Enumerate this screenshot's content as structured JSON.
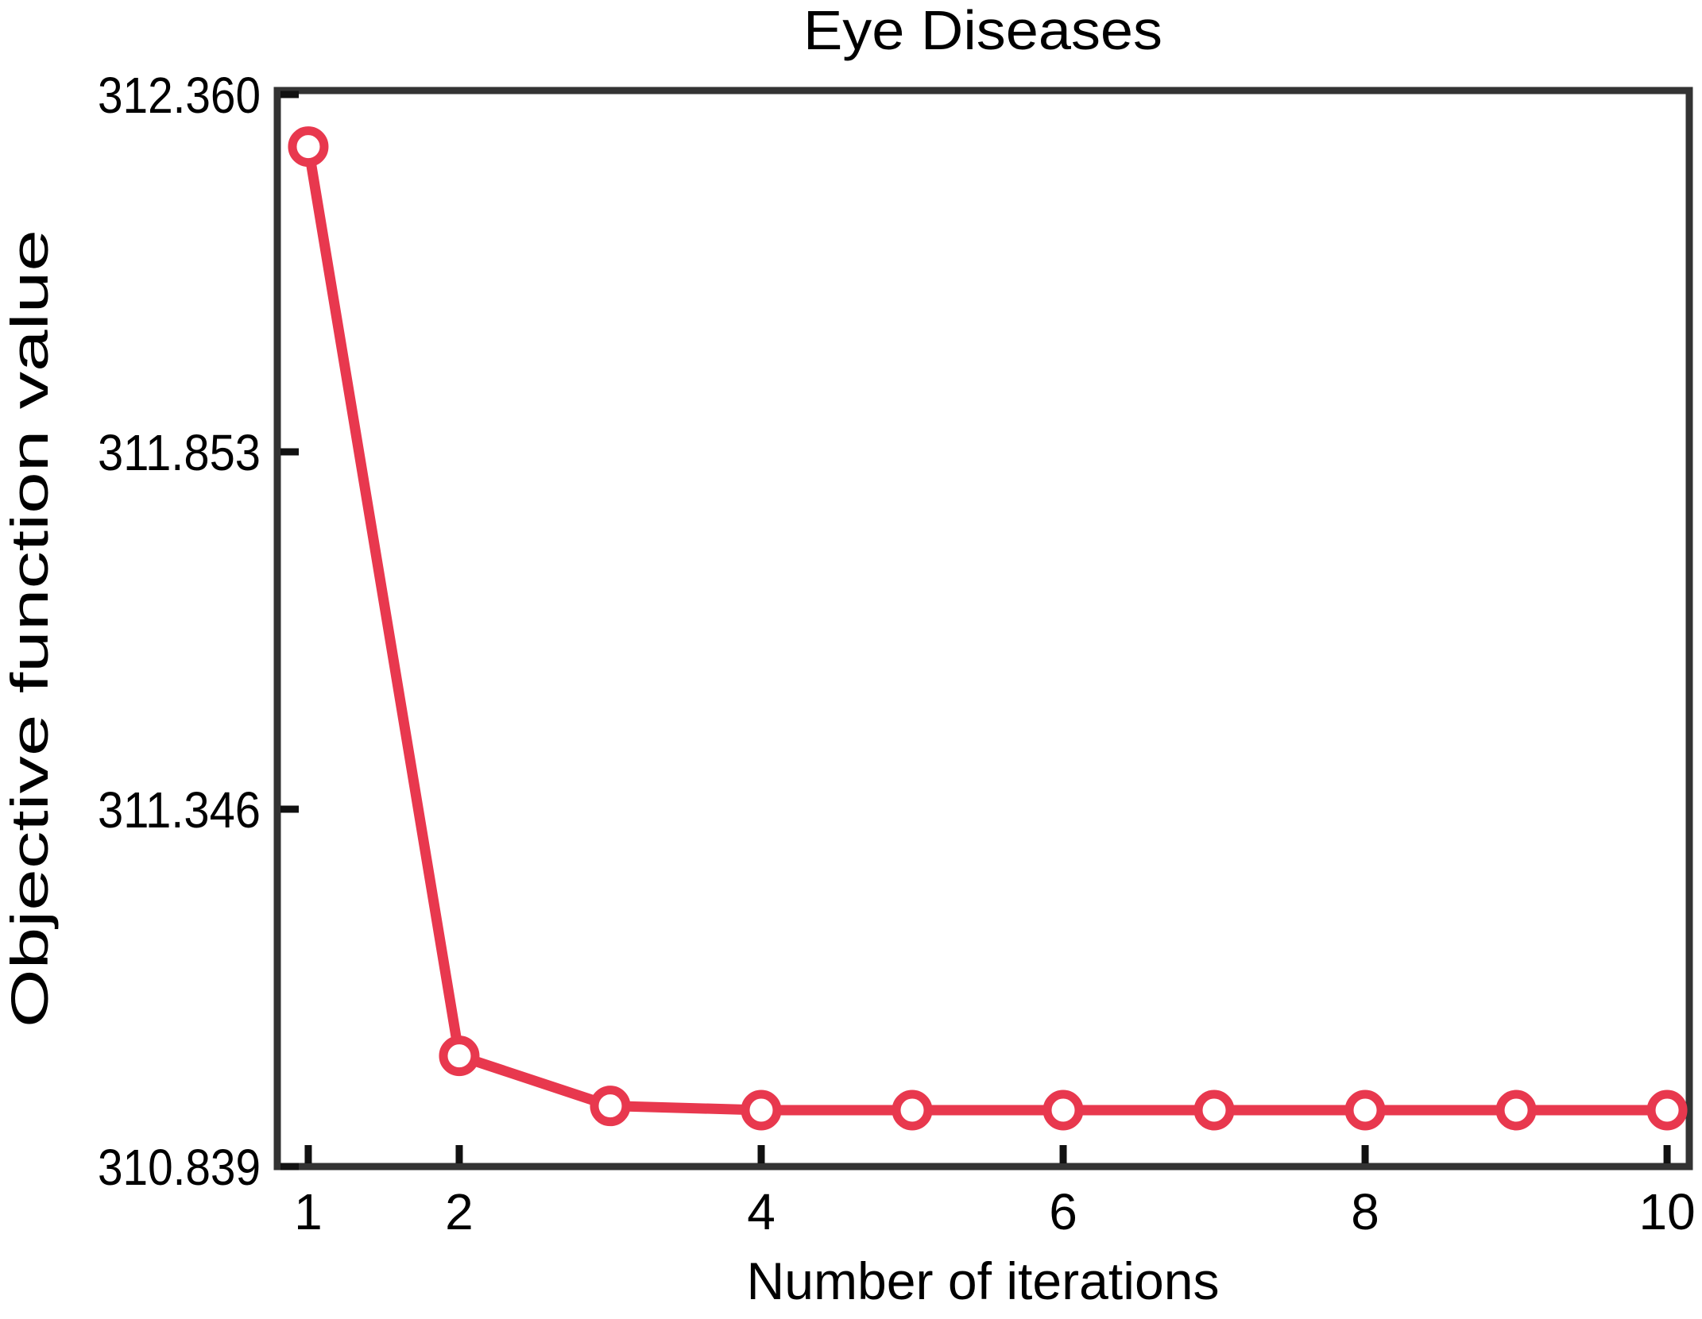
{
  "chart_data": {
    "type": "line",
    "title": "Eye Diseases",
    "xlabel": "Number of iterations",
    "ylabel": "Objective function value",
    "x": [
      1,
      2,
      3,
      4,
      5,
      6,
      7,
      8,
      9,
      10
    ],
    "series": [
      {
        "name": "objective-function-value",
        "values": [
          312.286,
          310.996,
          310.925,
          310.919,
          310.919,
          310.919,
          310.919,
          310.919,
          310.919,
          310.919
        ]
      }
    ],
    "xticks": [
      1,
      2,
      4,
      6,
      8,
      10
    ],
    "xtick_labels": [
      "1",
      "2",
      "4",
      "6",
      "8",
      "10"
    ],
    "yticks": [
      310.839,
      311.346,
      311.853,
      312.36
    ],
    "ytick_labels": [
      "310.839",
      "311.346",
      "311.853",
      "312.360"
    ],
    "xlim": [
      0.795,
      10.147
    ],
    "ylim": [
      310.839,
      312.3656
    ],
    "grid": false,
    "legend_visible": false,
    "line_color": "#e8384e",
    "marker_shape": "open-circle",
    "marker_fill": "#ffffff",
    "frame_color": "#333333",
    "tick_color": "#111111",
    "text_color": "#000000"
  }
}
